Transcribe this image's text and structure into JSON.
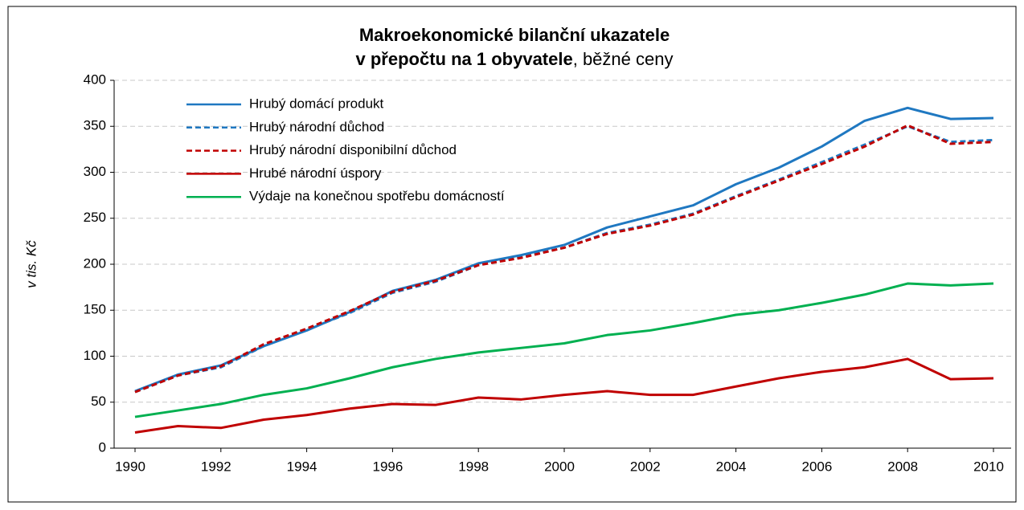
{
  "chart_data": {
    "type": "line",
    "title": [
      "Makroekonomické bilanční ukazatele",
      "v přepočtu na 1 obyvatele",
      ", běžné ceny"
    ],
    "y_label": "v tis. Kč",
    "x": [
      1990,
      1991,
      1992,
      1993,
      1994,
      1995,
      1996,
      1997,
      1998,
      1999,
      2000,
      2001,
      2002,
      2003,
      2004,
      2005,
      2006,
      2007,
      2008,
      2009,
      2010
    ],
    "xlim": [
      1990,
      2010
    ],
    "xticks": [
      1990,
      1992,
      1994,
      1996,
      1998,
      2000,
      2002,
      2004,
      2006,
      2008,
      2010
    ],
    "ylim": [
      0,
      400
    ],
    "yticks": [
      0,
      50,
      100,
      150,
      200,
      250,
      300,
      350,
      400
    ],
    "grid": true,
    "legend": "upper left",
    "series": [
      {
        "name": "Hrubý domácí produkt",
        "color": "#1f78c1",
        "dash": false,
        "values": [
          62,
          80,
          90,
          111,
          128,
          148,
          171,
          183,
          201,
          210,
          221,
          240,
          252,
          264,
          287,
          305,
          328,
          356,
          370,
          358,
          359
        ]
      },
      {
        "name": "Hrubý národní důchod",
        "color": "#1f78c1",
        "dash": true,
        "values": [
          61,
          79,
          88,
          111,
          129,
          147,
          169,
          181,
          199,
          208,
          218,
          234,
          243,
          255,
          274,
          292,
          311,
          330,
          350,
          333,
          335
        ]
      },
      {
        "name": "Hrubý národní disponibilní důchod",
        "color": "#c00000",
        "dash": true,
        "values": [
          61,
          79,
          89,
          113,
          130,
          149,
          170,
          182,
          199,
          207,
          218,
          233,
          242,
          254,
          273,
          291,
          309,
          328,
          351,
          331,
          333
        ]
      },
      {
        "name": "Hrubé národní úspory",
        "color": "#c00000",
        "dash": false,
        "values": [
          17,
          24,
          22,
          31,
          36,
          43,
          48,
          47,
          55,
          53,
          58,
          62,
          58,
          58,
          67,
          76,
          83,
          88,
          97,
          75,
          76
        ]
      },
      {
        "name": "Výdaje na konečnou spotřebu domácností",
        "color": "#00b050",
        "dash": false,
        "values": [
          34,
          41,
          48,
          58,
          65,
          76,
          88,
          97,
          104,
          109,
          114,
          123,
          128,
          136,
          145,
          150,
          158,
          167,
          179,
          177,
          179
        ]
      }
    ]
  }
}
